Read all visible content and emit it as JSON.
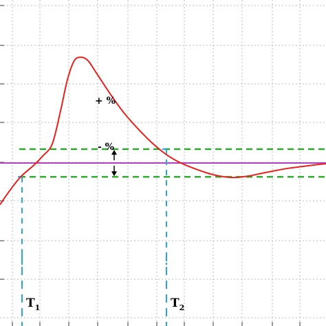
{
  "chart_data": {
    "type": "line",
    "title": "",
    "xlabel": "",
    "ylabel": "",
    "grid": true,
    "xlim": [
      0,
      474
    ],
    "ylim": [
      -4.7,
      4.7
    ],
    "colors": {
      "response": "#e8201c",
      "setpoint": "#b040c0",
      "tolerance": "#2eaa2e",
      "marker": "#2aa6dc",
      "grid": "#bbbbbb",
      "axis": "#333333"
    },
    "series": [
      {
        "role": "response",
        "points": [
          [
            0,
            -1.2
          ],
          [
            14,
            -0.8
          ],
          [
            30,
            -0.4
          ],
          [
            50,
            -0.05
          ],
          [
            62,
            0.2
          ],
          [
            76,
            0.55
          ],
          [
            88,
            1.5
          ],
          [
            98,
            2.4
          ],
          [
            108,
            2.95
          ],
          [
            118,
            3.05
          ],
          [
            128,
            2.95
          ],
          [
            140,
            2.6
          ],
          [
            160,
            2.0
          ],
          [
            180,
            1.45
          ],
          [
            200,
            1.0
          ],
          [
            220,
            0.6
          ],
          [
            240,
            0.27
          ],
          [
            258,
            0.05
          ],
          [
            275,
            -0.1
          ],
          [
            300,
            -0.28
          ],
          [
            320,
            -0.38
          ],
          [
            340,
            -0.42
          ],
          [
            360,
            -0.38
          ],
          [
            380,
            -0.3
          ],
          [
            400,
            -0.22
          ],
          [
            420,
            -0.15
          ],
          [
            440,
            -0.1
          ],
          [
            460,
            -0.05
          ],
          [
            474,
            -0.02
          ]
        ]
      },
      {
        "role": "setpoint",
        "value": 0
      },
      {
        "role": "upper-band",
        "value": 0.4
      },
      {
        "role": "lower-band",
        "value": -0.4
      }
    ],
    "markers": [
      {
        "name": "T1",
        "x": 32,
        "y_top": -0.4
      },
      {
        "name": "T2",
        "x": 242,
        "y_top": 0.4
      }
    ],
    "annotations": {
      "plus_label": "+ %",
      "minus_label": "- %"
    },
    "markers_labels": [
      {
        "main": "T",
        "sub": "1"
      },
      {
        "main": "T",
        "sub": "2"
      }
    ]
  }
}
